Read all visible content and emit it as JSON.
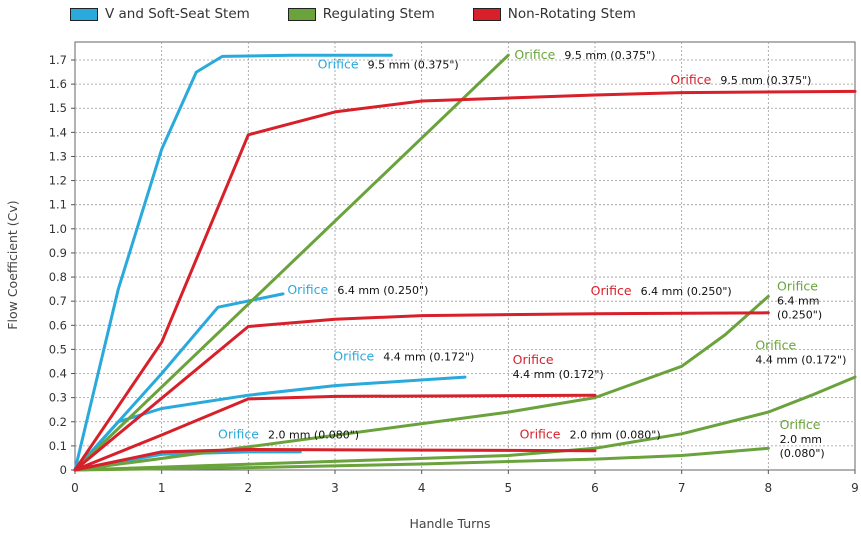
{
  "chart_data": {
    "type": "line",
    "xlabel": "Handle Turns",
    "ylabel": "Flow Coefficient (Cv)",
    "xlim": [
      0,
      9
    ],
    "ylim": [
      0,
      1.75
    ],
    "x_ticks": [
      "0",
      "1",
      "2",
      "3",
      "4",
      "5",
      "6",
      "7",
      "8",
      "9"
    ],
    "y_ticks": [
      "0",
      "0.1",
      "0.2",
      "0.3",
      "0.4",
      "0.5",
      "0.6",
      "0.7",
      "0.8",
      "0.9",
      "1.0",
      "1.1",
      "1.2",
      "1.3",
      "1.4",
      "1.5",
      "1.6",
      "1.7"
    ],
    "grid": true,
    "legend_position": "top",
    "legend": [
      {
        "label": "V and Soft-Seat Stem",
        "color": "#29a9dc"
      },
      {
        "label": "Regulating Stem",
        "color": "#6aa33c"
      },
      {
        "label": "Non-Rotating Stem",
        "color": "#d7202a"
      }
    ],
    "series": [
      {
        "group": "V and Soft-Seat Stem",
        "color": "#29a9dc",
        "points": [
          [
            0,
            0
          ],
          [
            0.5,
            0.75
          ],
          [
            1,
            1.33
          ],
          [
            1.4,
            1.65
          ],
          [
            1.7,
            1.715
          ],
          [
            2.5,
            1.72
          ],
          [
            3.65,
            1.72
          ]
        ]
      },
      {
        "group": "V and Soft-Seat Stem",
        "color": "#29a9dc",
        "points": [
          [
            0,
            0
          ],
          [
            1,
            0.4
          ],
          [
            1.65,
            0.675
          ],
          [
            2.4,
            0.73
          ]
        ]
      },
      {
        "group": "V and Soft-Seat Stem",
        "color": "#29a9dc",
        "points": [
          [
            0,
            0
          ],
          [
            0.5,
            0.2
          ],
          [
            1,
            0.255
          ],
          [
            2,
            0.31
          ],
          [
            3,
            0.35
          ],
          [
            4.5,
            0.385
          ]
        ]
      },
      {
        "group": "V and Soft-Seat Stem",
        "color": "#29a9dc",
        "points": [
          [
            0,
            0
          ],
          [
            1,
            0.065
          ],
          [
            2,
            0.075
          ],
          [
            2.6,
            0.075
          ]
        ]
      },
      {
        "group": "Regulating Stem",
        "color": "#6aa33c",
        "points": [
          [
            0,
            0
          ],
          [
            5,
            1.72
          ]
        ]
      },
      {
        "group": "Regulating Stem",
        "color": "#6aa33c",
        "points": [
          [
            0,
            0
          ],
          [
            5,
            0.24
          ],
          [
            6,
            0.3
          ],
          [
            7,
            0.43
          ],
          [
            7.5,
            0.56
          ],
          [
            8,
            0.72
          ]
        ]
      },
      {
        "group": "Regulating Stem",
        "color": "#6aa33c",
        "points": [
          [
            0,
            0
          ],
          [
            5,
            0.06
          ],
          [
            6,
            0.09
          ],
          [
            7,
            0.15
          ],
          [
            8,
            0.24
          ],
          [
            8.5,
            0.31
          ],
          [
            9,
            0.385
          ]
        ]
      },
      {
        "group": "Regulating Stem",
        "color": "#6aa33c",
        "points": [
          [
            0,
            0
          ],
          [
            2,
            0.01
          ],
          [
            4,
            0.025
          ],
          [
            6,
            0.045
          ],
          [
            7,
            0.06
          ],
          [
            8,
            0.09
          ]
        ]
      },
      {
        "group": "Non-Rotating Stem",
        "color": "#d7202a",
        "points": [
          [
            0,
            0
          ],
          [
            1,
            0.53
          ],
          [
            2,
            1.39
          ],
          [
            3,
            1.485
          ],
          [
            4,
            1.53
          ],
          [
            6,
            1.555
          ],
          [
            7,
            1.565
          ],
          [
            9,
            1.57
          ]
        ]
      },
      {
        "group": "Non-Rotating Stem",
        "color": "#d7202a",
        "points": [
          [
            0,
            0
          ],
          [
            2,
            0.595
          ],
          [
            3,
            0.625
          ],
          [
            4,
            0.64
          ],
          [
            6,
            0.648
          ],
          [
            8,
            0.652
          ]
        ]
      },
      {
        "group": "Non-Rotating Stem",
        "color": "#d7202a",
        "points": [
          [
            0,
            0
          ],
          [
            1,
            0.145
          ],
          [
            2,
            0.295
          ],
          [
            3,
            0.305
          ],
          [
            6,
            0.31
          ]
        ]
      },
      {
        "group": "Non-Rotating Stem",
        "color": "#d7202a",
        "points": [
          [
            0,
            0
          ],
          [
            1,
            0.075
          ],
          [
            2,
            0.085
          ],
          [
            6,
            0.08
          ]
        ]
      }
    ],
    "annotations": [
      {
        "label": "Orifice",
        "size": "9.5 mm (0.375\")",
        "color": "#29a9dc",
        "x": 2.8,
        "y": 1.665,
        "layout": "inline"
      },
      {
        "label": "Orifice",
        "size": "9.5 mm (0.375\")",
        "color": "#6aa33c",
        "x": 5.07,
        "y": 1.705,
        "layout": "inline"
      },
      {
        "label": "Orifice",
        "size": "9.5 mm (0.375\")",
        "color": "#d7202a",
        "x": 6.87,
        "y": 1.6,
        "layout": "inline"
      },
      {
        "label": "Orifice",
        "size": "6.4 mm (0.250\")",
        "color": "#29a9dc",
        "x": 2.45,
        "y": 0.73,
        "layout": "inline"
      },
      {
        "label": "Orifice",
        "size": "6.4 mm (0.250\")",
        "color": "#d7202a",
        "x": 5.95,
        "y": 0.725,
        "layout": "inline"
      },
      {
        "label": "Orifice",
        "size": "6.4 mm",
        "size2": "(0.250\")",
        "color": "#6aa33c",
        "x": 8.1,
        "y": 0.745,
        "layout": "stack3"
      },
      {
        "label": "Orifice",
        "size": "4.4 mm (0.172\")",
        "color": "#29a9dc",
        "x": 2.98,
        "y": 0.455,
        "layout": "inline"
      },
      {
        "label": "Orifice",
        "size": "4.4 mm (0.172\")",
        "color": "#d7202a",
        "x": 5.05,
        "y": 0.44,
        "layout": "stack2"
      },
      {
        "label": "Orifice",
        "size": "4.4 mm (0.172\")",
        "color": "#6aa33c",
        "x": 7.85,
        "y": 0.5,
        "layout": "stack2"
      },
      {
        "label": "Orifice",
        "size": "2.0 mm (0.080\")",
        "color": "#29a9dc",
        "x": 1.65,
        "y": 0.13,
        "layout": "inline"
      },
      {
        "label": "Orifice",
        "size": "2.0 mm (0.080\")",
        "color": "#d7202a",
        "x": 5.13,
        "y": 0.13,
        "layout": "inline"
      },
      {
        "label": "Orifice",
        "size": "2.0 mm",
        "size2": "(0.080\")",
        "color": "#6aa33c",
        "x": 8.13,
        "y": 0.17,
        "layout": "stack3"
      }
    ]
  }
}
